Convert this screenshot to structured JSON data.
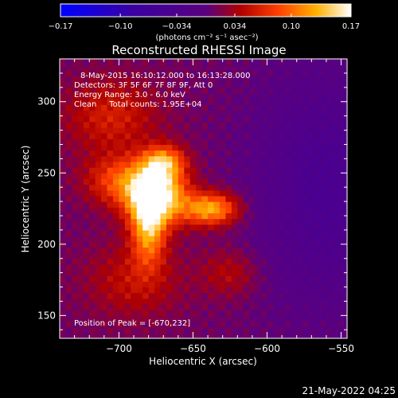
{
  "chart_data": {
    "type": "heatmap",
    "title": "Reconstructed RHESSI Image",
    "xlabel": "Heliocentric X (arcsec)",
    "ylabel": "Heliocentric Y (arcsec)",
    "xlim": [
      -740,
      -546
    ],
    "ylim": [
      134,
      330
    ],
    "xticks": [
      -700,
      -650,
      -600,
      -550
    ],
    "yticks": [
      150,
      200,
      250,
      300
    ],
    "colorbar": {
      "label": "(photons cm⁻² s⁻¹ asec⁻²)",
      "range": [
        -0.17,
        0.17
      ],
      "ticks": [
        -0.17,
        -0.1,
        -0.034,
        0.034,
        0.1,
        0.17
      ],
      "tick_labels": [
        "−0.17",
        "−0.10",
        "−0.034",
        "0.034",
        "0.10",
        "0.17"
      ]
    },
    "annotations": [
      "8-May-2015 16:10:12.000 to 16:13:28.000",
      "Detectors: 3F 5F 6F 7F 8F 9F, Att 0",
      "Energy Range: 3.0 - 6.0 keV",
      "Clean     Total counts: 1.95E+04",
      "Position of Peak = [-670,232]"
    ],
    "sources": [
      {
        "x": -675,
        "y": 235,
        "peak": 0.17,
        "width_x": 14,
        "width_y": 14
      },
      {
        "x": -680,
        "y": 212,
        "peak": 0.11,
        "width_x": 8,
        "width_y": 18
      },
      {
        "x": -670,
        "y": 258,
        "peak": 0.1,
        "width_x": 10,
        "width_y": 8
      },
      {
        "x": -638,
        "y": 225,
        "peak": 0.12,
        "width_x": 13,
        "width_y": 8
      },
      {
        "x": -700,
        "y": 245,
        "peak": 0.07,
        "width_x": 16,
        "width_y": 12
      },
      {
        "x": -705,
        "y": 290,
        "peak": 0.05,
        "width_x": 22,
        "width_y": 18
      },
      {
        "x": -690,
        "y": 175,
        "peak": 0.04,
        "width_x": 22,
        "width_y": 18
      },
      {
        "x": -625,
        "y": 180,
        "peak": 0.035,
        "width_x": 14,
        "width_y": 12
      }
    ],
    "background": 0.01,
    "negative_region": {
      "x": -560,
      "y": 240,
      "value": -0.05,
      "width_x": 35,
      "width_y": 60
    }
  },
  "footer": {
    "timestamp": "21-May-2022 04:25"
  }
}
